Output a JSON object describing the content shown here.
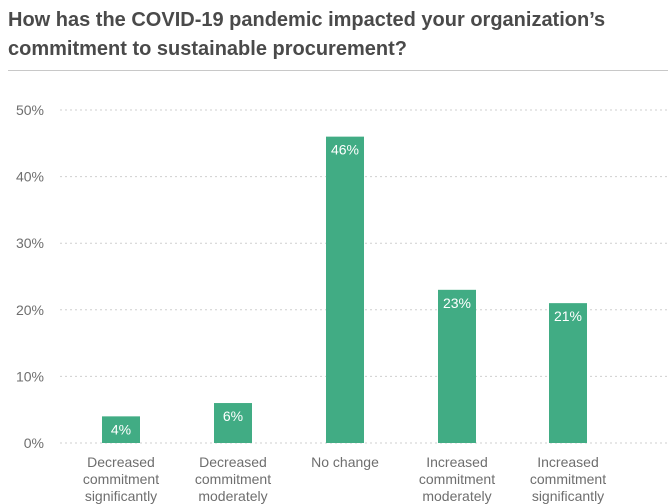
{
  "chart_data": {
    "type": "bar",
    "title": "How has the COVID-19 pandemic impacted your organization’s commitment to sustainable procurement?",
    "categories": [
      [
        "Decreased",
        "commitment",
        "significantly"
      ],
      [
        "Decreased",
        "commitment",
        "moderately"
      ],
      [
        "No change"
      ],
      [
        "Increased",
        "commitment",
        "moderately"
      ],
      [
        "Increased",
        "commitment",
        "significantly"
      ]
    ],
    "values": [
      4,
      6,
      46,
      23,
      21
    ],
    "data_labels": [
      "4%",
      "6%",
      "46%",
      "23%",
      "21%"
    ],
    "y_ticks": [
      0,
      10,
      20,
      30,
      40,
      50
    ],
    "y_tick_labels": [
      "0%",
      "10%",
      "20%",
      "30%",
      "40%",
      "50%"
    ],
    "ylim": [
      0,
      50
    ],
    "xlabel": "",
    "ylabel": "",
    "grid": "horizontal dotted",
    "colors": {
      "bar": "#41ac84",
      "grid": "#cfcfcf",
      "text": "#6e6e6e",
      "title": "#4a4a4a"
    }
  }
}
